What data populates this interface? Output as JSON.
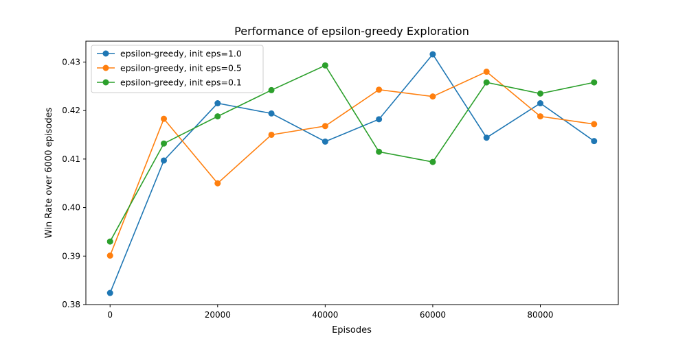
{
  "chart_data": {
    "type": "line",
    "title": "Performance of epsilon-greedy Exploration",
    "xlabel": "Episodes",
    "ylabel": "Win Rate over 6000 episodes",
    "x": [
      0,
      10000,
      20000,
      30000,
      40000,
      50000,
      60000,
      70000,
      80000,
      90000
    ],
    "xlim": [
      -4500,
      94500
    ],
    "ylim": [
      0.38,
      0.4343
    ],
    "xticks": [
      0,
      20000,
      40000,
      60000,
      80000
    ],
    "xtick_labels": [
      "0",
      "20000",
      "40000",
      "60000",
      "80000"
    ],
    "yticks": [
      0.38,
      0.39,
      0.4,
      0.41,
      0.42,
      0.43
    ],
    "ytick_labels": [
      "0.38",
      "0.39",
      "0.40",
      "0.41",
      "0.42",
      "0.43"
    ],
    "grid": false,
    "legend_position": "top-left",
    "series": [
      {
        "name": "epsilon-greedy, init eps=1.0",
        "color": "#1f77b4",
        "values": [
          0.3824,
          0.4097,
          0.4215,
          0.4194,
          0.4136,
          0.4182,
          0.4316,
          0.4144,
          0.4215,
          0.4137
        ]
      },
      {
        "name": "epsilon-greedy, init eps=0.5",
        "color": "#ff7f0e",
        "values": [
          0.3901,
          0.4183,
          0.405,
          0.415,
          0.4168,
          0.4243,
          0.4229,
          0.428,
          0.4188,
          0.4172
        ]
      },
      {
        "name": "epsilon-greedy, init eps=0.1",
        "color": "#2ca02c",
        "values": [
          0.393,
          0.4132,
          0.4188,
          0.4242,
          0.4293,
          0.4115,
          0.4094,
          0.4258,
          0.4235,
          0.4258
        ]
      }
    ]
  }
}
